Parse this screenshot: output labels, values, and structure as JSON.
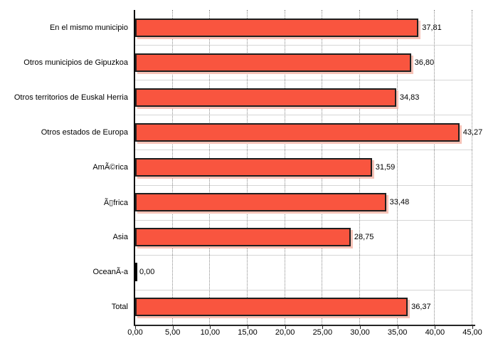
{
  "chart_data": {
    "type": "bar",
    "orientation": "horizontal",
    "title": "",
    "categories": [
      "En el mismo municipio",
      "Otros municipios de Gipuzkoa",
      "Otros territorios de Euskal Herria",
      "Otros estados de Europa",
      "AmÃ©rica",
      "Ã▯frica",
      "Asia",
      "OceanÃ-a",
      "Total"
    ],
    "values": [
      37.81,
      36.8,
      34.83,
      43.27,
      31.59,
      33.48,
      28.75,
      0.0,
      36.37
    ],
    "value_labels": [
      "37,81",
      "36,80",
      "34,83",
      "43,27",
      "31,59",
      "33,48",
      "28,75",
      "0,00",
      "36,37"
    ],
    "x_axis": {
      "min": 0,
      "max": 45,
      "tick_step": 5,
      "tick_values": [
        0,
        5,
        10,
        15,
        20,
        25,
        30,
        35,
        40,
        45
      ],
      "tick_labels": [
        "0,00",
        "5,00",
        "10,00",
        "15,00",
        "20,00",
        "25,00",
        "30,00",
        "35,00",
        "40,00",
        "45,00"
      ]
    },
    "ylabel": "",
    "xlabel": "",
    "legend": "none",
    "grid": {
      "vertical_gridlines": "dotted",
      "row_separators": true
    },
    "colors": {
      "bar_fill": "#f9553f",
      "bar_outline": "#1f1f1f",
      "bar_shadow": "#f6c3b8",
      "gridline": "#8a8a8a",
      "row_separator": "#d6d6d6",
      "axis_line": "#262626",
      "text": "#000000",
      "background": "#ffffff"
    }
  }
}
